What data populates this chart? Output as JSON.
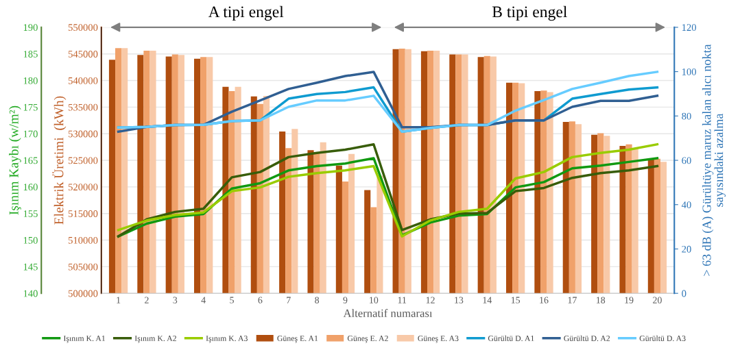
{
  "chart_data": {
    "type": "bar",
    "categories": [
      "1",
      "2",
      "3",
      "4",
      "5",
      "6",
      "7",
      "8",
      "9",
      "10",
      "11",
      "12",
      "13",
      "14",
      "15",
      "16",
      "17",
      "18",
      "19",
      "20"
    ],
    "xlabel": "Alternatif numarası",
    "ylabel": "Elektrik Üretimi  (kWh)",
    "y2label": "> 63 dB (A) Gürültüye maruz kalan alıcı nokta\nsayısındaki azalma",
    "y3label": "Işınım Kaybı (w/m²)",
    "ylim": [
      500000,
      550000
    ],
    "yticks": [
      500000,
      505000,
      510000,
      515000,
      520000,
      525000,
      530000,
      535000,
      540000,
      545000,
      550000
    ],
    "y2lim": [
      0,
      120
    ],
    "y2ticks": [
      0,
      20,
      40,
      60,
      80,
      100,
      120
    ],
    "y3lim": [
      140,
      190
    ],
    "y3ticks": [
      140,
      145,
      150,
      155,
      160,
      165,
      170,
      175,
      180,
      185,
      190
    ],
    "grid": "y",
    "legend": "bottom",
    "annotations": [
      "A tipi engel",
      "B tipi engel"
    ],
    "series": [
      {
        "name": "Işınım K. A1",
        "type": "line",
        "axis": "y3",
        "color": "#119911",
        "values": [
          150.7,
          153.1,
          154.4,
          154.9,
          159.7,
          160.7,
          163.1,
          163.9,
          164.4,
          165.4,
          150.9,
          153.3,
          154.6,
          154.9,
          159.9,
          160.9,
          163.5,
          164.0,
          164.7,
          165.4
        ]
      },
      {
        "name": "Işınım K. A2",
        "type": "line",
        "axis": "y3",
        "color": "#385d0a",
        "values": [
          150.7,
          153.9,
          155.3,
          155.9,
          161.8,
          162.8,
          165.6,
          166.4,
          167.0,
          168.0,
          151.9,
          153.9,
          155.0,
          155.1,
          159.2,
          159.8,
          161.7,
          162.6,
          163.1,
          163.9
        ]
      },
      {
        "name": "Işınım K. A3",
        "type": "line",
        "axis": "y3",
        "color": "#99cc00",
        "values": [
          151.9,
          153.7,
          154.7,
          155.2,
          159.2,
          159.9,
          161.9,
          162.6,
          163.1,
          163.9,
          150.7,
          153.7,
          155.3,
          155.9,
          161.6,
          162.8,
          165.6,
          166.4,
          167.0,
          168.0
        ]
      },
      {
        "name": "Güneş E. A1",
        "color": "#b04e0f",
        "values": [
          543900,
          544800,
          544500,
          544100,
          538800,
          537000,
          530400,
          526900,
          524000,
          519400,
          545900,
          545500,
          544900,
          544400,
          539600,
          538000,
          532200,
          529800,
          527700,
          525300
        ]
      },
      {
        "name": "Güneş E. A2",
        "color": "#f0a16a",
        "values": [
          546100,
          545600,
          544900,
          544400,
          538000,
          535600,
          527300,
          526300,
          521000,
          516200,
          546000,
          545600,
          544900,
          544600,
          539600,
          538100,
          532300,
          530100,
          528000,
          525300
        ]
      },
      {
        "name": "Güneş E. A3",
        "color": "#f8c9a8",
        "values": [
          546100,
          545600,
          544800,
          544400,
          538800,
          537100,
          530900,
          528400,
          526200,
          522100,
          545900,
          545600,
          544900,
          544500,
          539500,
          537800,
          531800,
          529600,
          527200,
          524700
        ]
      },
      {
        "name": "Gürültü D. A1",
        "type": "line",
        "axis": "y2",
        "color": "#0f9bd0",
        "values": [
          74.8,
          75.1,
          75.9,
          76.0,
          77.7,
          78.0,
          87.8,
          89.9,
          90.8,
          92.9,
          72.9,
          74.6,
          75.9,
          75.9,
          78.0,
          78.0,
          87.8,
          89.9,
          91.9,
          92.9
        ]
      },
      {
        "name": "Gürültü D. A2",
        "type": "line",
        "axis": "y2",
        "color": "#305f92",
        "values": [
          72.9,
          75.1,
          75.9,
          76.0,
          81.9,
          87.0,
          92.2,
          95.0,
          98.0,
          99.9,
          74.9,
          74.9,
          75.9,
          75.9,
          78.0,
          78.0,
          84.1,
          86.8,
          86.8,
          89.1
        ]
      },
      {
        "name": "Gürültü D. A3",
        "type": "line",
        "axis": "y2",
        "color": "#66ccff",
        "values": [
          74.8,
          75.1,
          75.9,
          76.0,
          77.7,
          78.0,
          84.1,
          87.0,
          87.0,
          89.1,
          72.9,
          74.6,
          75.9,
          75.9,
          82.4,
          87.2,
          92.2,
          95.0,
          98.0,
          99.9
        ]
      }
    ]
  }
}
